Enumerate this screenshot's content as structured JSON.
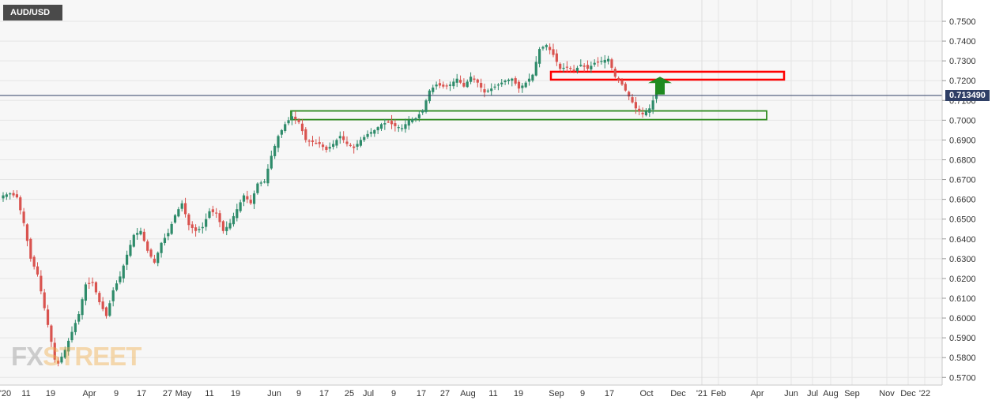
{
  "symbol": "AUD/USD",
  "current_price_label": "0.713490",
  "watermark": {
    "part1": "FX",
    "part2": "STREET"
  },
  "colors": {
    "up": "#2e8b6a",
    "down": "#d9534f",
    "grid": "#e6e6e6",
    "background": "#f7f7f7",
    "support_zone": "#2e8b1f",
    "resistance_zone": "#ff0000",
    "arrow": "#1f8a1f",
    "price_line": "#2f3f66"
  },
  "chart_data": {
    "type": "candlestick",
    "title": "AUD/USD",
    "ylim": [
      0.57,
      0.75
    ],
    "yticks": [
      "0.7500",
      "0.7400",
      "0.7300",
      "0.7200",
      "0.7100",
      "0.7000",
      "0.6900",
      "0.6800",
      "0.6700",
      "0.6600",
      "0.6500",
      "0.6400",
      "0.6300",
      "0.6200",
      "0.6100",
      "0.6000",
      "0.5900",
      "0.5800",
      "0.5700"
    ],
    "xticks": [
      "'20",
      "11",
      "19",
      "Apr",
      "9",
      "17",
      "27",
      "May",
      "11",
      "19",
      "Jun",
      "9",
      "17",
      "25",
      "Jul",
      "9",
      "17",
      "27",
      "Aug",
      "11",
      "19",
      "Sep",
      "9",
      "17",
      "Oct",
      "Dec",
      "'21",
      "Feb",
      "Apr",
      "Jun",
      "Jul",
      "Aug",
      "Sep",
      "Nov",
      "Dec",
      "'22"
    ],
    "last_price": 0.71349,
    "zones": [
      {
        "name": "resistance",
        "y_low": 0.7205,
        "y_high": 0.7245
      },
      {
        "name": "support",
        "y_low": 0.7003,
        "y_high": 0.7047
      }
    ],
    "arrow": {
      "direction": "up",
      "y_from": 0.713,
      "y_to": 0.722
    },
    "close_anchors": [
      [
        0,
        0.662
      ],
      [
        2,
        0.663
      ],
      [
        4,
        0.661
      ],
      [
        6,
        0.648
      ],
      [
        8,
        0.63
      ],
      [
        10,
        0.622
      ],
      [
        12,
        0.605
      ],
      [
        14,
        0.588
      ],
      [
        15,
        0.579
      ],
      [
        16,
        0.577
      ],
      [
        18,
        0.584
      ],
      [
        20,
        0.593
      ],
      [
        22,
        0.602
      ],
      [
        24,
        0.617
      ],
      [
        26,
        0.618
      ],
      [
        28,
        0.608
      ],
      [
        30,
        0.601
      ],
      [
        32,
        0.614
      ],
      [
        34,
        0.621
      ],
      [
        36,
        0.632
      ],
      [
        38,
        0.642
      ],
      [
        40,
        0.644
      ],
      [
        42,
        0.634
      ],
      [
        44,
        0.628
      ],
      [
        46,
        0.638
      ],
      [
        48,
        0.643
      ],
      [
        50,
        0.652
      ],
      [
        52,
        0.658
      ],
      [
        54,
        0.647
      ],
      [
        56,
        0.644
      ],
      [
        58,
        0.646
      ],
      [
        60,
        0.654
      ],
      [
        62,
        0.653
      ],
      [
        64,
        0.644
      ],
      [
        66,
        0.648
      ],
      [
        68,
        0.655
      ],
      [
        70,
        0.662
      ],
      [
        72,
        0.658
      ],
      [
        74,
        0.668
      ],
      [
        76,
        0.669
      ],
      [
        78,
        0.682
      ],
      [
        80,
        0.692
      ],
      [
        82,
        0.698
      ],
      [
        84,
        0.702
      ],
      [
        86,
        0.699
      ],
      [
        88,
        0.69
      ],
      [
        90,
        0.689
      ],
      [
        92,
        0.688
      ],
      [
        94,
        0.685
      ],
      [
        96,
        0.688
      ],
      [
        98,
        0.692
      ],
      [
        100,
        0.688
      ],
      [
        102,
        0.686
      ],
      [
        104,
        0.69
      ],
      [
        106,
        0.693
      ],
      [
        108,
        0.695
      ],
      [
        110,
        0.698
      ],
      [
        112,
        0.699
      ],
      [
        114,
        0.697
      ],
      [
        116,
        0.696
      ],
      [
        118,
        0.7
      ],
      [
        120,
        0.701
      ],
      [
        122,
        0.705
      ],
      [
        124,
        0.715
      ],
      [
        126,
        0.718
      ],
      [
        128,
        0.717
      ],
      [
        130,
        0.718
      ],
      [
        132,
        0.721
      ],
      [
        134,
        0.717
      ],
      [
        136,
        0.722
      ],
      [
        138,
        0.719
      ],
      [
        140,
        0.714
      ],
      [
        142,
        0.716
      ],
      [
        144,
        0.718
      ],
      [
        146,
        0.72
      ],
      [
        148,
        0.721
      ],
      [
        150,
        0.716
      ],
      [
        152,
        0.719
      ],
      [
        154,
        0.723
      ],
      [
        156,
        0.736
      ],
      [
        158,
        0.738
      ],
      [
        160,
        0.733
      ],
      [
        162,
        0.726
      ],
      [
        164,
        0.727
      ],
      [
        166,
        0.725
      ],
      [
        168,
        0.728
      ],
      [
        170,
        0.726
      ],
      [
        172,
        0.729
      ],
      [
        174,
        0.73
      ],
      [
        176,
        0.731
      ],
      [
        178,
        0.722
      ],
      [
        180,
        0.718
      ],
      [
        182,
        0.712
      ],
      [
        184,
        0.706
      ],
      [
        186,
        0.703
      ],
      [
        188,
        0.706
      ],
      [
        190,
        0.714
      ]
    ]
  }
}
